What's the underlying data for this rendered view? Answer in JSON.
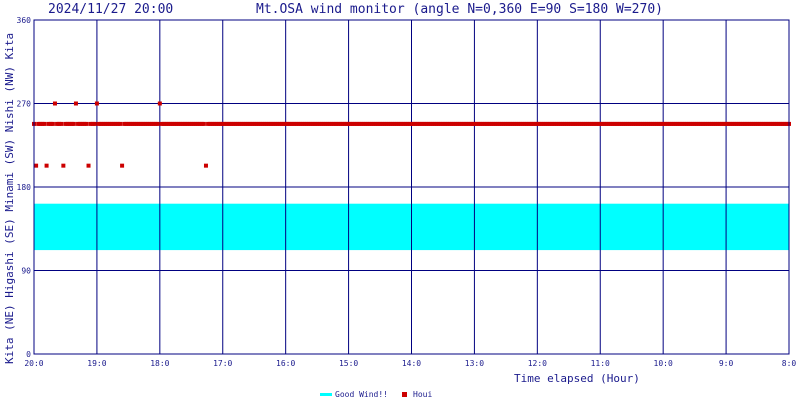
{
  "chart_data": {
    "type": "scatter",
    "timestamp": "2024/11/27 20:00",
    "title": "Mt.OSA wind monitor (angle N=0,360 E=90 S=180 W=270)",
    "xlabel": "Time elapsed (Hour)",
    "y_axis_label": "Kita (NE) Higashi (SE) Minami (SW) Nishi (NW) Kita",
    "ylim": [
      0,
      360
    ],
    "xlim": [
      20,
      8
    ],
    "y_ticks": [
      "0",
      "90",
      "180",
      "270",
      "360"
    ],
    "x_ticks": [
      "20:0",
      "19:0",
      "18:0",
      "17:0",
      "16:0",
      "15:0",
      "14:0",
      "13:0",
      "12:0",
      "11:0",
      "10:0",
      "9:0",
      "8:0"
    ],
    "good_wind_band": [
      112,
      162
    ],
    "legend": [
      {
        "name": "Good Wind!!",
        "color": "#00ffff"
      },
      {
        "name": "Houi",
        "color": "#cc0000"
      }
    ],
    "colors": {
      "frame": "#000080",
      "grid": "#000080",
      "good_band": "#00ffff",
      "points": "#cc0000",
      "text": "#1a1a8c"
    },
    "sample_step_min": 2,
    "series": [
      {
        "name": "Houi",
        "values": [
          248,
          203,
          248,
          248,
          248,
          248,
          203,
          248,
          248,
          248,
          270,
          248,
          248,
          248,
          203,
          248,
          248,
          248,
          248,
          248,
          270,
          248,
          248,
          248,
          248,
          248,
          203,
          248,
          248,
          248,
          270,
          248,
          248,
          248,
          248,
          248,
          248,
          248,
          248,
          248,
          248,
          248,
          203,
          248,
          248,
          248,
          248,
          248,
          248,
          248,
          248,
          248,
          248,
          248,
          248,
          248,
          248,
          248,
          248,
          248,
          270,
          248,
          248,
          248,
          248,
          248,
          248,
          248,
          248,
          248,
          248,
          248,
          248,
          248,
          248,
          248,
          248,
          248,
          248,
          248,
          248,
          248,
          203,
          248,
          248,
          248,
          248,
          248,
          248,
          248,
          248,
          248,
          248,
          248,
          248,
          248,
          248,
          248,
          248,
          248,
          248,
          248,
          248,
          248,
          248,
          248,
          248,
          248,
          248,
          248,
          248,
          248,
          248,
          248,
          248,
          248,
          248,
          248,
          248,
          248,
          248,
          248,
          248,
          248,
          248,
          248,
          248,
          248,
          248,
          248,
          248,
          248,
          248,
          248,
          248,
          248,
          248,
          248,
          248,
          248,
          248,
          248,
          248,
          248,
          248,
          248,
          248,
          248,
          248,
          248,
          248,
          248,
          248,
          248,
          248,
          248,
          248,
          248,
          248,
          248,
          248,
          248,
          248,
          248,
          248,
          248,
          248,
          248,
          248,
          248,
          248,
          248,
          248,
          248,
          248,
          248,
          248,
          248,
          248,
          248,
          248,
          248,
          248,
          248,
          248,
          248,
          248,
          248,
          248,
          248,
          248,
          248,
          248,
          248,
          248,
          248,
          248,
          248,
          248,
          248,
          248,
          248,
          248,
          248,
          248,
          248,
          248,
          248,
          248,
          248,
          248,
          248,
          248,
          248,
          248,
          248,
          248,
          248,
          248,
          248,
          248,
          248,
          248,
          248,
          248,
          248,
          248,
          248,
          248,
          248,
          248,
          248,
          248,
          248,
          248,
          248,
          248,
          248,
          248,
          248,
          248,
          248,
          248,
          248,
          248,
          248,
          248,
          248,
          248,
          248,
          248,
          248,
          248,
          248,
          248,
          248,
          248,
          248,
          248,
          248,
          248,
          248,
          248,
          248,
          248,
          248,
          248,
          248,
          248,
          248,
          248,
          248,
          248,
          248,
          248,
          248,
          248,
          248,
          248,
          248,
          248,
          248,
          248,
          248,
          248,
          248,
          248,
          248,
          248,
          248,
          248,
          248,
          248,
          248,
          248,
          248,
          248,
          248,
          248,
          248,
          248,
          248,
          248,
          248,
          248,
          248,
          248,
          248,
          248,
          248,
          248,
          248,
          248,
          248,
          248,
          248,
          248,
          248,
          248,
          248,
          248,
          248,
          248,
          248,
          248,
          248,
          248,
          248,
          248,
          248,
          248,
          248,
          248,
          248,
          248,
          248,
          248,
          248,
          248,
          248,
          248,
          248,
          248,
          248,
          248,
          248,
          248,
          248,
          248,
          248,
          248,
          248,
          248,
          248,
          248,
          248,
          248,
          248,
          248,
          248,
          248,
          248,
          248,
          248,
          248,
          248,
          248,
          248,
          248,
          248,
          248,
          248,
          248,
          248,
          248,
          248,
          248,
          248,
          248,
          248,
          248,
          248,
          248,
          248,
          248,
          248,
          248,
          248,
          248,
          248,
          248,
          248,
          248,
          248,
          248,
          248,
          248,
          248,
          248,
          248
        ]
      }
    ]
  }
}
